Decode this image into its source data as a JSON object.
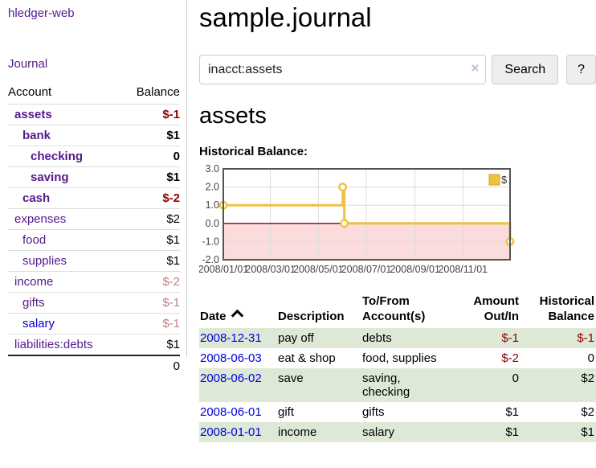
{
  "sidebar": {
    "app_title": "hledger-web",
    "journal_link": "Journal",
    "accounts_header": {
      "account": "Account",
      "balance": "Balance"
    },
    "accounts": [
      {
        "name": "assets",
        "level": 1,
        "bold": true,
        "balance": "$-1",
        "balance_style": "negative"
      },
      {
        "name": "bank",
        "level": 2,
        "bold": true,
        "balance": "$1",
        "balance_style": "normal"
      },
      {
        "name": "checking",
        "level": 3,
        "bold": true,
        "balance": "0",
        "balance_style": "normal"
      },
      {
        "name": "saving",
        "level": 3,
        "bold": true,
        "balance": "$1",
        "balance_style": "normal"
      },
      {
        "name": "cash",
        "level": 2,
        "bold": true,
        "balance": "$-2",
        "balance_style": "negative"
      },
      {
        "name": "expenses",
        "level": 1,
        "bold": false,
        "balance": "$2",
        "balance_style": "normal"
      },
      {
        "name": "food",
        "level": 2,
        "bold": false,
        "balance": "$1",
        "balance_style": "normal"
      },
      {
        "name": "supplies",
        "level": 2,
        "bold": false,
        "balance": "$1",
        "balance_style": "normal"
      },
      {
        "name": "income",
        "level": 1,
        "bold": false,
        "balance": "$-2",
        "balance_style": "negative-dim"
      },
      {
        "name": "gifts",
        "level": 2,
        "bold": false,
        "balance": "$-1",
        "balance_style": "negative-dim"
      },
      {
        "name": "salary",
        "level": 2,
        "bold": false,
        "balance": "$-1",
        "balance_style": "negative-dim",
        "link_style": "unvisited"
      },
      {
        "name": "liabilities:debts",
        "level": 1,
        "bold": false,
        "balance": "$1",
        "balance_style": "normal"
      }
    ],
    "total": "0"
  },
  "main": {
    "title": "sample.journal",
    "search": {
      "query": "inacct:assets",
      "clear_icon": "×",
      "button_label": "Search",
      "help_label": "?"
    },
    "account_heading": "assets"
  },
  "chart_data": {
    "type": "line",
    "step": true,
    "title": "Historical Balance:",
    "x_range": [
      "2008-01-01",
      "2008-12-31"
    ],
    "ylim": [
      -2,
      3
    ],
    "y_ticks": [
      "3.0",
      "2.0",
      "1.0",
      "0.0",
      "-1.0",
      "-2.0"
    ],
    "x_ticks": [
      "2008/01/01",
      "2008/03/01",
      "2008/05/01",
      "2008/07/01",
      "2008/09/01",
      "2008/11/01"
    ],
    "series": [
      {
        "name": "$",
        "color": "#edc240",
        "points": [
          [
            "2008-01-01",
            1
          ],
          [
            "2008-06-01",
            2
          ],
          [
            "2008-06-03",
            0
          ],
          [
            "2008-12-31",
            -1
          ]
        ]
      }
    ],
    "legend_position": "top-right",
    "grid": true,
    "grid_color": "#dcdcdc",
    "border_color": "#545454",
    "zero_line_color": "#8b0000",
    "negative_region_color": "#fadcdc"
  },
  "transactions": {
    "headers": [
      {
        "line1": "Date",
        "line2": "",
        "align": "left"
      },
      {
        "line1": "Description",
        "line2": "",
        "align": "left"
      },
      {
        "line1": "To/From",
        "line2": "Account(s)",
        "align": "left"
      },
      {
        "line1": "Amount",
        "line2": "Out/In",
        "align": "right"
      },
      {
        "line1": "Historical",
        "line2": "Balance",
        "align": "right"
      }
    ],
    "sort_icon": "chevron-up",
    "rows": [
      {
        "date": "2008-12-31",
        "description": "pay off",
        "accounts": "debts",
        "amount": "$-1",
        "amount_negative": true,
        "balance": "$-1",
        "balance_negative": true
      },
      {
        "date": "2008-06-03",
        "description": "eat & shop",
        "accounts": "food, supplies",
        "amount": "$-2",
        "amount_negative": true,
        "balance": "0",
        "balance_negative": false
      },
      {
        "date": "2008-06-02",
        "description": "save",
        "accounts": "saving, checking",
        "amount": "0",
        "amount_negative": false,
        "balance": "$2",
        "balance_negative": false
      },
      {
        "date": "2008-06-01",
        "description": "gift",
        "accounts": "gifts",
        "amount": "$1",
        "amount_negative": false,
        "balance": "$2",
        "balance_negative": false
      },
      {
        "date": "2008-01-01",
        "description": "income",
        "accounts": "salary",
        "amount": "$1",
        "amount_negative": false,
        "balance": "$1",
        "balance_negative": false
      }
    ]
  }
}
